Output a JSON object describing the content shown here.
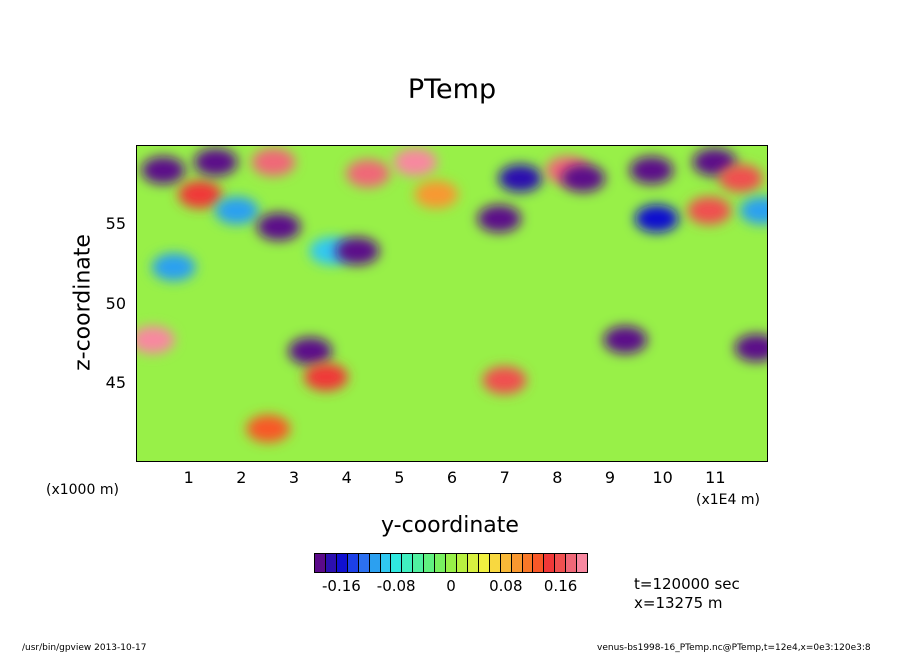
{
  "chart_data": {
    "type": "heatmap",
    "title": "PTemp",
    "xlabel": "y-coordinate",
    "ylabel": "z-coordinate",
    "x_unit_label": "(x1E4 m)",
    "y_unit_label": "(x1000 m)",
    "xlim": [
      0,
      12
    ],
    "ylim": [
      40,
      59.5
    ],
    "x_ticks": [
      "1",
      "2",
      "3",
      "4",
      "5",
      "6",
      "7",
      "8",
      "9",
      "10",
      "11"
    ],
    "y_ticks": [
      "45",
      "50",
      "55"
    ],
    "colorbar": {
      "colors": [
        "#5b0a8a",
        "#2c10b0",
        "#1010d0",
        "#1c40e8",
        "#2c70f0",
        "#2ca0f0",
        "#30c8f0",
        "#30e8e0",
        "#40f0c0",
        "#50f0a0",
        "#60f080",
        "#78f060",
        "#98f048",
        "#b8f040",
        "#d8f040",
        "#f0f040",
        "#f8d840",
        "#f8b838",
        "#f89830",
        "#f87828",
        "#f85828",
        "#f03838",
        "#f05050",
        "#f06878",
        "#f888a0"
      ],
      "tick_labels": [
        "-0.16",
        "-0.08",
        "0",
        "0.08",
        "0.16"
      ],
      "tick_values": [
        -0.16,
        -0.08,
        0,
        0.08,
        0.16
      ],
      "range": [
        -0.2,
        0.2
      ]
    },
    "features": [
      {
        "y": 0.3,
        "z": 47.5,
        "value": 0.2
      },
      {
        "y": 0.5,
        "z": 58.0,
        "value": -0.2
      },
      {
        "y": 0.7,
        "z": 52.0,
        "value": -0.12
      },
      {
        "y": 1.2,
        "z": 56.5,
        "value": 0.14
      },
      {
        "y": 1.5,
        "z": 58.5,
        "value": -0.2
      },
      {
        "y": 1.9,
        "z": 55.5,
        "value": -0.12
      },
      {
        "y": 2.6,
        "z": 58.5,
        "value": 0.18
      },
      {
        "y": 2.7,
        "z": 54.5,
        "value": -0.2
      },
      {
        "y": 2.5,
        "z": 42.0,
        "value": 0.12
      },
      {
        "y": 3.3,
        "z": 46.8,
        "value": -0.2
      },
      {
        "y": 3.6,
        "z": 45.2,
        "value": 0.14
      },
      {
        "y": 3.7,
        "z": 53.0,
        "value": -0.1
      },
      {
        "y": 4.2,
        "z": 53.0,
        "value": -0.2
      },
      {
        "y": 4.4,
        "z": 57.8,
        "value": 0.18
      },
      {
        "y": 5.3,
        "z": 58.5,
        "value": 0.2
      },
      {
        "y": 5.7,
        "z": 56.5,
        "value": 0.1
      },
      {
        "y": 6.9,
        "z": 55.0,
        "value": -0.2
      },
      {
        "y": 7.0,
        "z": 45.0,
        "value": 0.16
      },
      {
        "y": 7.3,
        "z": 57.5,
        "value": -0.18
      },
      {
        "y": 8.2,
        "z": 58.0,
        "value": 0.18
      },
      {
        "y": 8.5,
        "z": 57.5,
        "value": -0.2
      },
      {
        "y": 9.3,
        "z": 47.5,
        "value": -0.2
      },
      {
        "y": 9.8,
        "z": 58.0,
        "value": -0.2
      },
      {
        "y": 9.9,
        "z": 55.0,
        "value": -0.16
      },
      {
        "y": 10.9,
        "z": 55.5,
        "value": 0.16
      },
      {
        "y": 11.0,
        "z": 58.5,
        "value": -0.2
      },
      {
        "y": 11.5,
        "z": 57.5,
        "value": 0.16
      },
      {
        "y": 11.8,
        "z": 47.0,
        "value": -0.2
      },
      {
        "y": 11.9,
        "z": 55.5,
        "value": -0.12
      }
    ]
  },
  "info": {
    "time": "t=120000 sec",
    "position": "x=13275 m"
  },
  "footer": {
    "left": "/usr/bin/gpview  2013-10-17",
    "right": "venus-bs1998-16_PTemp.nc@PTemp,t=12e4,x=0e3:120e3:8"
  }
}
